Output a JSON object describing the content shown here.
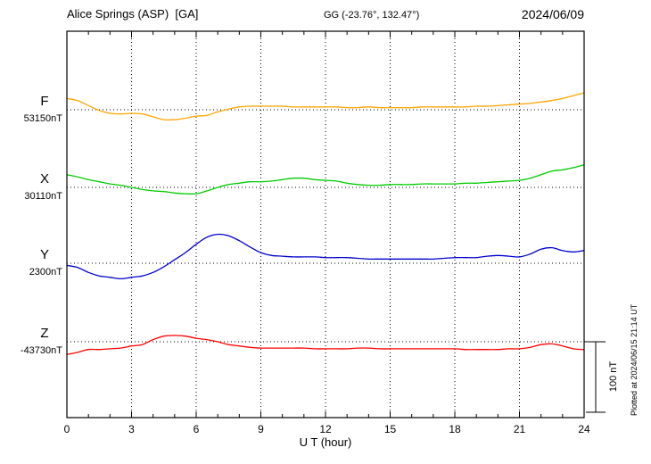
{
  "header": {
    "station": "Alice Springs (ASP)  [GA]",
    "coords": "GG (-23.76°, 132.47°)",
    "date": "2024/06/09"
  },
  "axis": {
    "xlabel": "U T (hour)"
  },
  "scale_bar": {
    "label": "100 nT",
    "nT": 100
  },
  "footer_note": "Plotted at 2024/06/15 21:14 UT",
  "chart_data": {
    "type": "line",
    "title": "Alice Springs (ASP) [GA] magnetogram 2024/06/09",
    "xlabel": "U T (hour)",
    "x_range": [
      0,
      24
    ],
    "x_ticks": [
      0,
      3,
      6,
      9,
      12,
      15,
      18,
      21,
      24
    ],
    "x_step_hours": 0.5,
    "grid": "dotted vertical at 3h intervals, dotted horizontal baselines per trace",
    "legend_position": "left baseline labels",
    "scale": {
      "label": "100 nT",
      "nT": 100
    },
    "series": [
      {
        "name": "F",
        "baseline_label": "53150nT",
        "baseline_nT": 53150,
        "color": "#FFA500",
        "offsets_nT": [
          16,
          13,
          6,
          -1,
          -5,
          -6,
          -5,
          -6,
          -10,
          -14,
          -14,
          -12,
          -9,
          -8,
          -3,
          1,
          4,
          5,
          5,
          5,
          5,
          4,
          4,
          4,
          4,
          4,
          3,
          3,
          4,
          3,
          3,
          3,
          3,
          4,
          4,
          4,
          4,
          4,
          5,
          5,
          6,
          7,
          8,
          9,
          11,
          13,
          16,
          20,
          24
        ]
      },
      {
        "name": "X",
        "baseline_label": "30110nT",
        "baseline_nT": 30110,
        "color": "#00CC00",
        "offsets_nT": [
          18,
          15,
          11,
          8,
          5,
          3,
          0,
          -3,
          -5,
          -6,
          -8,
          -9,
          -9,
          -5,
          0,
          4,
          6,
          8,
          8,
          9,
          11,
          13,
          13,
          11,
          10,
          9,
          6,
          4,
          3,
          3,
          4,
          4,
          4,
          5,
          5,
          5,
          5,
          6,
          6,
          7,
          8,
          9,
          10,
          13,
          18,
          23,
          25,
          28,
          32
        ]
      },
      {
        "name": "Y",
        "baseline_label": "2300nT",
        "baseline_nT": 2300,
        "color": "#0000CC",
        "offsets_nT": [
          -3,
          -6,
          -13,
          -18,
          -20,
          -22,
          -20,
          -18,
          -13,
          -5,
          5,
          15,
          27,
          37,
          41,
          39,
          32,
          23,
          15,
          11,
          10,
          9,
          9,
          9,
          8,
          8,
          8,
          7,
          6,
          6,
          6,
          6,
          6,
          6,
          6,
          7,
          8,
          8,
          8,
          10,
          11,
          10,
          9,
          13,
          20,
          22,
          18,
          16,
          18
        ]
      },
      {
        "name": "Z",
        "baseline_label": "-43730nT",
        "baseline_nT": -43730,
        "color": "#FF0000",
        "offsets_nT": [
          -18,
          -15,
          -11,
          -11,
          -10,
          -9,
          -6,
          -4,
          3,
          8,
          9,
          8,
          5,
          3,
          0,
          -4,
          -6,
          -8,
          -9,
          -9,
          -9,
          -9,
          -9,
          -10,
          -10,
          -10,
          -10,
          -9,
          -9,
          -10,
          -10,
          -10,
          -10,
          -10,
          -10,
          -10,
          -10,
          -11,
          -11,
          -11,
          -11,
          -10,
          -10,
          -8,
          -4,
          -3,
          -6,
          -10,
          -11
        ]
      }
    ]
  }
}
